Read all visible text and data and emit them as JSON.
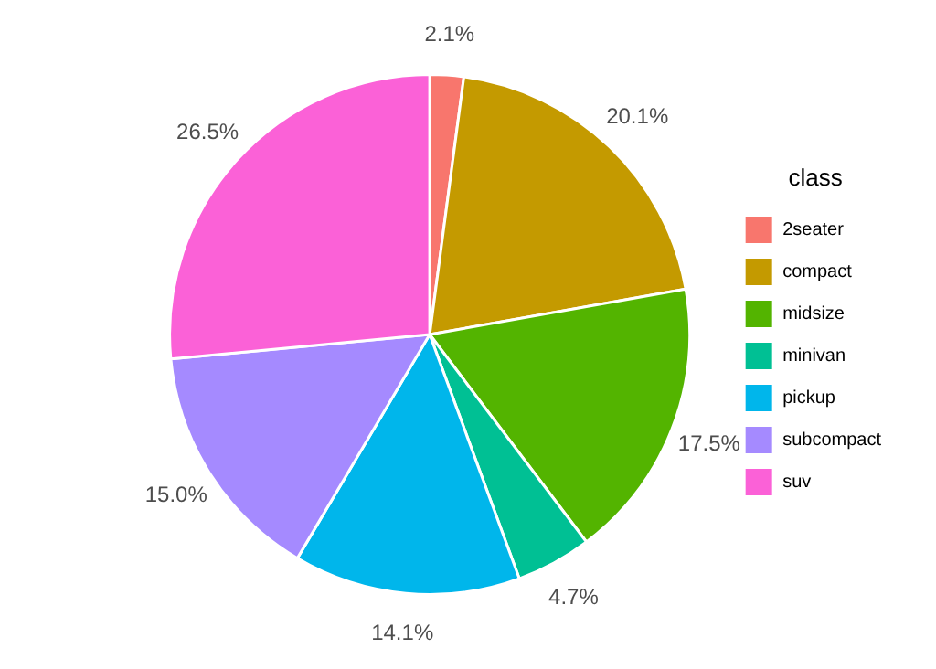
{
  "chart_data": {
    "type": "pie",
    "legend_title": "class",
    "legend": "right",
    "categories": [
      "2seater",
      "compact",
      "midsize",
      "minivan",
      "pickup",
      "subcompact",
      "suv"
    ],
    "values": [
      2.1,
      20.1,
      17.5,
      4.7,
      14.1,
      15.0,
      26.5
    ],
    "colors": [
      "#f8766d",
      "#c49a00",
      "#53b400",
      "#00c094",
      "#00b6eb",
      "#a58aff",
      "#fb61d7"
    ],
    "value_labels": [
      "2.1%",
      "20.1%",
      "17.5%",
      "4.7%",
      "14.1%",
      "15.0%",
      "26.5%"
    ]
  }
}
